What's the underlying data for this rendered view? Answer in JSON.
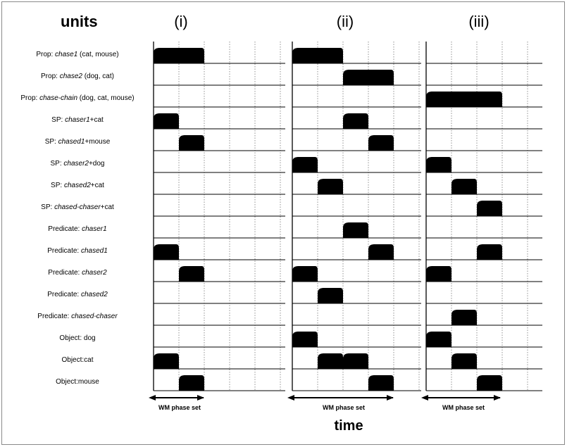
{
  "header": {
    "units_title": "units",
    "time_label": "time"
  },
  "panels": [
    {
      "title": "(i)",
      "span_label": "WM phase set"
    },
    {
      "title": "(ii)",
      "span_label": "WM phase set"
    },
    {
      "title": "(iii)",
      "span_label": "WM phase set"
    }
  ],
  "rows": [
    {
      "name": "prop-chase1",
      "prefix": "Prop: ",
      "italic": "chase1",
      "suffix": " (cat, mouse)"
    },
    {
      "name": "prop-chase2",
      "prefix": "Prop: ",
      "italic": "chase2",
      "suffix": " (dog, cat)"
    },
    {
      "name": "prop-chase-chain",
      "prefix": "Prop: ",
      "italic": "chase-chain",
      "suffix": " (dog, cat, mouse)"
    },
    {
      "name": "sp-chaser1-cat",
      "prefix": "SP: ",
      "italic": "chaser1",
      "suffix": "+cat"
    },
    {
      "name": "sp-chased1-mouse",
      "prefix": "SP: ",
      "italic": "chased1",
      "suffix": "+mouse"
    },
    {
      "name": "sp-chaser2-dog",
      "prefix": "SP: ",
      "italic": "chaser2",
      "suffix": "+dog"
    },
    {
      "name": "sp-chased2-cat",
      "prefix": "SP: ",
      "italic": "chased2",
      "suffix": "+cat"
    },
    {
      "name": "sp-chased-chaser-cat",
      "prefix": "SP: ",
      "italic": "chased-chaser",
      "suffix": "+cat"
    },
    {
      "name": "pred-chaser1",
      "prefix": "Predicate: ",
      "italic": "chaser1",
      "suffix": ""
    },
    {
      "name": "pred-chased1",
      "prefix": "Predicate: ",
      "italic": "chased1",
      "suffix": ""
    },
    {
      "name": "pred-chaser2",
      "prefix": "Predicate: ",
      "italic": "chaser2",
      "suffix": ""
    },
    {
      "name": "pred-chased2",
      "prefix": "Predicate: ",
      "italic": "chased2",
      "suffix": ""
    },
    {
      "name": "pred-chased-chaser",
      "prefix": "Predicate: ",
      "italic": "chased-chaser",
      "suffix": ""
    },
    {
      "name": "obj-dog",
      "prefix": "Object: dog",
      "italic": "",
      "suffix": ""
    },
    {
      "name": "obj-cat",
      "prefix": "Object:cat",
      "italic": "",
      "suffix": ""
    },
    {
      "name": "obj-mouse",
      "prefix": "Object:mouse",
      "italic": "",
      "suffix": ""
    }
  ],
  "activations": {
    "panel_1": [
      [
        0,
        0,
        1
      ],
      [
        3,
        0,
        0
      ],
      [
        4,
        1,
        1
      ],
      [
        9,
        0,
        0
      ],
      [
        10,
        1,
        1
      ],
      [
        14,
        0,
        0
      ],
      [
        15,
        1,
        1
      ]
    ],
    "panel_2": [
      [
        0,
        0,
        1
      ],
      [
        1,
        2,
        3
      ],
      [
        3,
        2,
        2
      ],
      [
        4,
        3,
        3
      ],
      [
        5,
        0,
        0
      ],
      [
        6,
        1,
        1
      ],
      [
        8,
        2,
        2
      ],
      [
        9,
        3,
        3
      ],
      [
        10,
        0,
        0
      ],
      [
        11,
        1,
        1
      ],
      [
        13,
        0,
        0
      ],
      [
        14,
        1,
        1
      ],
      [
        14,
        2,
        2
      ],
      [
        15,
        3,
        3
      ]
    ],
    "panel_3": [
      [
        2,
        0,
        2
      ],
      [
        5,
        0,
        0
      ],
      [
        6,
        1,
        1
      ],
      [
        7,
        2,
        2
      ],
      [
        9,
        2,
        2
      ],
      [
        10,
        0,
        0
      ],
      [
        12,
        1,
        1
      ],
      [
        13,
        0,
        0
      ],
      [
        14,
        1,
        1
      ],
      [
        15,
        2,
        2
      ]
    ]
  }
}
